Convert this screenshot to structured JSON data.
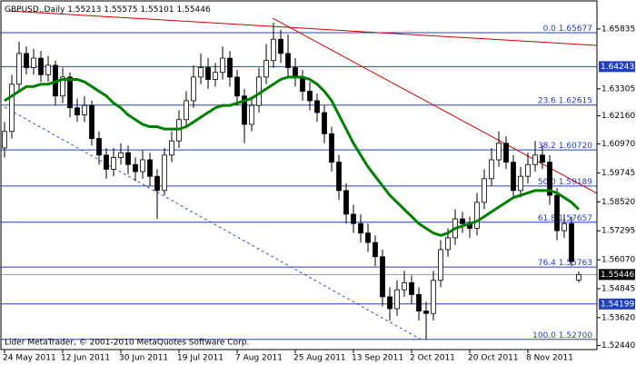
{
  "chart_data": {
    "type": "candlestick",
    "title": "GBPUSD,,Daily",
    "footer": "Lider MetaTrader, © 2001-2010 MetaQuotes Software Corp.",
    "candles": [
      [
        1.608,
        1.619,
        1.604,
        1.615
      ],
      [
        1.615,
        1.639,
        1.612,
        1.635
      ],
      [
        1.635,
        1.653,
        1.632,
        1.648
      ],
      [
        1.648,
        1.651,
        1.639,
        1.642
      ],
      [
        1.642,
        1.65,
        1.639,
        1.646
      ],
      [
        1.646,
        1.649,
        1.636,
        1.639
      ],
      [
        1.639,
        1.647,
        1.636,
        1.643
      ],
      [
        1.643,
        1.645,
        1.626,
        1.63
      ],
      [
        1.63,
        1.642,
        1.627,
        1.638
      ],
      [
        1.638,
        1.64,
        1.621,
        1.625
      ],
      [
        1.625,
        1.629,
        1.619,
        1.622
      ],
      [
        1.622,
        1.63,
        1.619,
        1.626
      ],
      [
        1.626,
        1.628,
        1.609,
        1.612
      ],
      [
        1.612,
        1.615,
        1.601,
        1.605
      ],
      [
        1.605,
        1.608,
        1.595,
        1.599
      ],
      [
        1.599,
        1.608,
        1.596,
        1.604
      ],
      [
        1.604,
        1.61,
        1.601,
        1.606
      ],
      [
        1.606,
        1.609,
        1.597,
        1.601
      ],
      [
        1.601,
        1.604,
        1.594,
        1.598
      ],
      [
        1.598,
        1.607,
        1.595,
        1.603
      ],
      [
        1.603,
        1.606,
        1.592,
        1.596
      ],
      [
        1.596,
        1.599,
        1.578,
        1.59
      ],
      [
        1.59,
        1.608,
        1.588,
        1.605
      ],
      [
        1.605,
        1.615,
        1.602,
        1.611
      ],
      [
        1.611,
        1.624,
        1.608,
        1.62
      ],
      [
        1.62,
        1.632,
        1.617,
        1.628
      ],
      [
        1.628,
        1.643,
        1.625,
        1.638
      ],
      [
        1.638,
        1.648,
        1.635,
        1.642
      ],
      [
        1.642,
        1.646,
        1.633,
        1.637
      ],
      [
        1.637,
        1.644,
        1.634,
        1.64
      ],
      [
        1.64,
        1.651,
        1.637,
        1.646
      ],
      [
        1.646,
        1.649,
        1.634,
        1.638
      ],
      [
        1.638,
        1.641,
        1.626,
        1.63
      ],
      [
        1.63,
        1.633,
        1.61,
        1.618
      ],
      [
        1.618,
        1.63,
        1.615,
        1.626
      ],
      [
        1.626,
        1.642,
        1.623,
        1.638
      ],
      [
        1.638,
        1.652,
        1.635,
        1.645
      ],
      [
        1.645,
        1.661,
        1.642,
        1.654
      ],
      [
        1.654,
        1.658,
        1.644,
        1.648
      ],
      [
        1.648,
        1.656,
        1.638,
        1.642
      ],
      [
        1.642,
        1.646,
        1.634,
        1.638
      ],
      [
        1.638,
        1.641,
        1.628,
        1.632
      ],
      [
        1.632,
        1.636,
        1.624,
        1.628
      ],
      [
        1.628,
        1.631,
        1.619,
        1.623
      ],
      [
        1.623,
        1.626,
        1.61,
        1.614
      ],
      [
        1.614,
        1.617,
        1.598,
        1.602
      ],
      [
        1.602,
        1.605,
        1.586,
        1.59
      ],
      [
        1.59,
        1.593,
        1.576,
        1.58
      ],
      [
        1.58,
        1.584,
        1.572,
        1.576
      ],
      [
        1.576,
        1.58,
        1.568,
        1.572
      ],
      [
        1.572,
        1.576,
        1.564,
        1.568
      ],
      [
        1.568,
        1.571,
        1.558,
        1.562
      ],
      [
        1.562,
        1.565,
        1.541,
        1.545
      ],
      [
        1.545,
        1.549,
        1.535,
        1.54
      ],
      [
        1.54,
        1.552,
        1.537,
        1.548
      ],
      [
        1.548,
        1.556,
        1.545,
        1.551
      ],
      [
        1.551,
        1.554,
        1.542,
        1.546
      ],
      [
        1.546,
        1.549,
        1.535,
        1.539
      ],
      [
        1.539,
        1.543,
        1.527,
        1.538
      ],
      [
        1.538,
        1.556,
        1.535,
        1.552
      ],
      [
        1.552,
        1.569,
        1.549,
        1.565
      ],
      [
        1.565,
        1.574,
        1.562,
        1.57
      ],
      [
        1.57,
        1.582,
        1.567,
        1.578
      ],
      [
        1.578,
        1.581,
        1.572,
        1.576
      ],
      [
        1.576,
        1.579,
        1.57,
        1.574
      ],
      [
        1.574,
        1.589,
        1.571,
        1.585
      ],
      [
        1.585,
        1.599,
        1.582,
        1.595
      ],
      [
        1.595,
        1.608,
        1.592,
        1.603
      ],
      [
        1.603,
        1.615,
        1.6,
        1.61
      ],
      [
        1.61,
        1.613,
        1.599,
        1.602
      ],
      [
        1.602,
        1.605,
        1.587,
        1.59
      ],
      [
        1.59,
        1.6,
        1.587,
        1.596
      ],
      [
        1.596,
        1.606,
        1.593,
        1.601
      ],
      [
        1.601,
        1.611,
        1.598,
        1.605
      ],
      [
        1.605,
        1.609,
        1.599,
        1.602
      ],
      [
        1.602,
        1.605,
        1.584,
        1.588
      ],
      [
        1.588,
        1.591,
        1.569,
        1.573
      ],
      [
        1.573,
        1.58,
        1.57,
        1.576
      ],
      [
        1.576,
        1.579,
        1.558,
        1.56
      ],
      [
        1.55213,
        1.55575,
        1.55101,
        1.55446
      ]
    ],
    "ma": {
      "color": "#008000",
      "values": [
        1.628,
        1.63,
        1.632,
        1.634,
        1.634,
        1.635,
        1.635,
        1.636,
        1.637,
        1.637,
        1.637,
        1.636,
        1.634,
        1.632,
        1.63,
        1.627,
        1.625,
        1.622,
        1.62,
        1.618,
        1.617,
        1.617,
        1.616,
        1.616,
        1.616,
        1.617,
        1.619,
        1.621,
        1.623,
        1.625,
        1.626,
        1.626,
        1.627,
        1.628,
        1.629,
        1.631,
        1.633,
        1.635,
        1.637,
        1.638,
        1.638,
        1.638,
        1.637,
        1.635,
        1.632,
        1.628,
        1.622,
        1.616,
        1.61,
        1.605,
        1.6,
        1.596,
        1.592,
        1.588,
        1.585,
        1.582,
        1.579,
        1.576,
        1.574,
        1.572,
        1.571,
        1.572,
        1.574,
        1.575,
        1.576,
        1.577,
        1.579,
        1.581,
        1.583,
        1.585,
        1.587,
        1.588,
        1.589,
        1.59,
        1.59,
        1.59,
        1.589,
        1.587,
        1.585,
        1.582
      ]
    },
    "ylim": [
      1.5227,
      1.6687
    ],
    "yticks": [
      1.65835,
      1.63305,
      {
        "value": 1.6216,
        "label": "1.62160"
      },
      {
        "value": 1.6097,
        "label": "1.60970"
      },
      1.59745,
      {
        "value": 1.5852,
        "label": "1.58520"
      },
      1.57295,
      {
        "value": 1.5607,
        "label": "1.56070"
      },
      1.54845,
      {
        "value": 1.5362,
        "label": "1.53620"
      },
      {
        "value": 1.5244,
        "label": "1.52440"
      }
    ],
    "xticks": [
      {
        "value": 0,
        "label": "24 May 2011"
      },
      {
        "value": 8,
        "label": "12 Jun 2011"
      },
      {
        "value": 16,
        "label": "30 Jun 2011"
      },
      {
        "value": 24,
        "label": "19 Jul 2011"
      },
      {
        "value": 32,
        "label": "7 Aug 2011"
      },
      {
        "value": 40,
        "label": "25 Aug 2011"
      },
      {
        "value": 48,
        "label": "13 Sep 2011"
      },
      {
        "value": 56,
        "label": "2 Oct 2011"
      },
      {
        "value": 64,
        "label": "20 Oct 2011"
      },
      {
        "value": 72,
        "label": "8 Nov 2011"
      }
    ],
    "hlines": [
      1.64243,
      1.54199
    ],
    "fib_levels": [
      {
        "level": "0.0",
        "price": 1.65677
      },
      {
        "level": "23.6",
        "price": 1.62615
      },
      {
        "level": "38.2",
        "price": {
          "value": 1.6072,
          "label": "1.60720"
        }
      },
      {
        "level": "50.0",
        "price": 1.59189
      },
      {
        "level": "61.8",
        "price": 1.57657
      },
      {
        "level": "76.4",
        "price": 1.55763
      },
      {
        "level": "100.0",
        "price": {
          "value": 1.527,
          "label": "1.52700"
        }
      }
    ],
    "trendlines": [
      {
        "color": "#d00000",
        "dashed": false,
        "points": [
          [
            0.6,
            1.666
          ],
          [
            81.5,
            1.6514
          ]
        ]
      },
      {
        "color": "#d00000",
        "dashed": false,
        "points": [
          [
            36.9,
            1.6629
          ],
          [
            81.5,
            1.5888
          ]
        ]
      },
      {
        "color": "#3050c0",
        "dashed": true,
        "points": [
          [
            0,
            1.6253
          ],
          [
            57.5,
            1.5266
          ]
        ]
      }
    ]
  }
}
